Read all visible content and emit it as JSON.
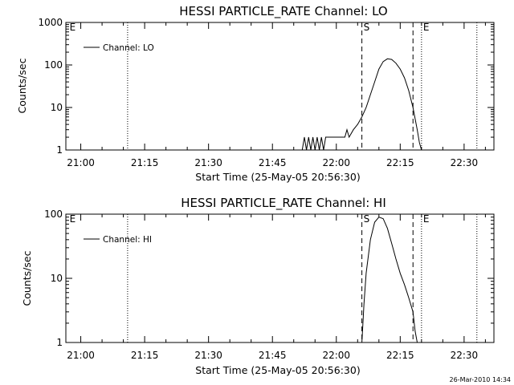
{
  "timestamp": "26-Mar-2010 14:34",
  "chart_data": [
    {
      "type": "line",
      "title": "HESSI PARTICLE_RATE Channel: LO",
      "xlabel": "Start Time (25-May-05 20:56:30)",
      "ylabel": "Counts/sec",
      "yscale": "log",
      "ylim": [
        1,
        1000
      ],
      "xlim": [
        "20:56:30",
        "22:37:00"
      ],
      "x_ticks": [
        "21:00",
        "21:15",
        "21:30",
        "21:45",
        "22:00",
        "22:15",
        "22:30"
      ],
      "y_ticks": [
        "1",
        "10",
        "100",
        "1000"
      ],
      "legend": [
        "Channel: LO"
      ],
      "legend_position": "top-left",
      "markers": [
        {
          "label": "E",
          "time": "20:57:00",
          "style": "none"
        },
        {
          "label": "",
          "time": "21:11:00",
          "style": "dotted"
        },
        {
          "label": "S",
          "time": "22:06:00",
          "style": "dashed"
        },
        {
          "label": "",
          "time": "22:18:00",
          "style": "dashed"
        },
        {
          "label": "E",
          "time": "22:20:00",
          "style": "dotted"
        },
        {
          "label": "",
          "time": "22:33:00",
          "style": "dotted"
        }
      ],
      "series": [
        {
          "name": "Channel: LO",
          "x": [
            "21:52:00",
            "21:52:30",
            "21:53:00",
            "21:53:30",
            "21:54:00",
            "21:54:30",
            "21:55:00",
            "21:55:30",
            "21:56:00",
            "21:56:30",
            "21:57:00",
            "21:57:30",
            "21:58:00",
            "21:59:00",
            "22:00:00",
            "22:01:00",
            "22:02:00",
            "22:02:30",
            "22:03:00",
            "22:04:00",
            "22:05:00",
            "22:06:00",
            "22:07:00",
            "22:08:00",
            "22:09:00",
            "22:10:00",
            "22:11:00",
            "22:12:00",
            "22:13:00",
            "22:14:00",
            "22:15:00",
            "22:16:00",
            "22:17:00",
            "22:18:00",
            "22:19:00",
            "22:19:30",
            "22:20:00"
          ],
          "y": [
            1,
            2,
            1,
            2,
            1,
            2,
            1,
            2,
            1,
            2,
            1,
            2,
            2,
            2,
            2,
            2,
            2,
            3,
            2,
            3,
            4,
            6,
            10,
            20,
            40,
            80,
            120,
            140,
            135,
            110,
            80,
            50,
            25,
            10,
            3,
            1.5,
            1
          ],
          "color": "#000000"
        }
      ]
    },
    {
      "type": "line",
      "title": "HESSI PARTICLE_RATE Channel: HI",
      "xlabel": "Start Time (25-May-05 20:56:30)",
      "ylabel": "Counts/sec",
      "yscale": "log",
      "ylim": [
        1,
        100
      ],
      "xlim": [
        "20:56:30",
        "22:37:00"
      ],
      "x_ticks": [
        "21:00",
        "21:15",
        "21:30",
        "21:45",
        "22:00",
        "22:15",
        "22:30"
      ],
      "y_ticks": [
        "1",
        "10",
        "100"
      ],
      "legend": [
        "Channel: HI"
      ],
      "legend_position": "top-left",
      "markers": [
        {
          "label": "E",
          "time": "20:57:00",
          "style": "none"
        },
        {
          "label": "",
          "time": "21:11:00",
          "style": "dotted"
        },
        {
          "label": "S",
          "time": "22:06:00",
          "style": "dashed"
        },
        {
          "label": "",
          "time": "22:18:00",
          "style": "dashed"
        },
        {
          "label": "E",
          "time": "22:20:00",
          "style": "dotted"
        },
        {
          "label": "",
          "time": "22:33:00",
          "style": "dotted"
        }
      ],
      "series": [
        {
          "name": "Channel: HI",
          "x": [
            "22:06:00",
            "22:06:30",
            "22:07:00",
            "22:08:00",
            "22:09:00",
            "22:10:00",
            "22:11:00",
            "22:12:00",
            "22:13:00",
            "22:14:00",
            "22:15:00",
            "22:16:00",
            "22:17:00",
            "22:18:00",
            "22:18:30",
            "22:19:00"
          ],
          "y": [
            1,
            4,
            12,
            40,
            75,
            90,
            85,
            60,
            35,
            20,
            12,
            8,
            5,
            3,
            1.5,
            1
          ],
          "color": "#000000"
        }
      ]
    }
  ]
}
